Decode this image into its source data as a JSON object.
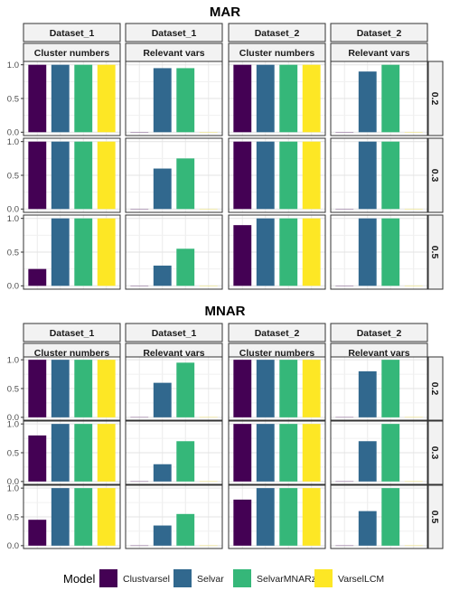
{
  "legend": {
    "title": "Model",
    "entries": [
      {
        "name": "Clustvarsel",
        "color": "#440154"
      },
      {
        "name": "Selvar",
        "color": "#31688E"
      },
      {
        "name": "SelvarMNARz",
        "color": "#35B779"
      },
      {
        "name": "VarselLCM",
        "color": "#FDE725"
      }
    ],
    "placement": "bottom"
  },
  "chart_data": [
    {
      "type": "bar",
      "title": "MAR",
      "columns": [
        {
          "dataset": "Dataset_1",
          "metric": "Cluster numbers"
        },
        {
          "dataset": "Dataset_1",
          "metric": "Relevant vars"
        },
        {
          "dataset": "Dataset_2",
          "metric": "Cluster numbers"
        },
        {
          "dataset": "Dataset_2",
          "metric": "Relevant vars"
        }
      ],
      "rows": [
        "0.2",
        "0.3",
        "0.5"
      ],
      "categories": [
        "Clustvarsel",
        "Selvar",
        "SelvarMNARz",
        "VarselLCM"
      ],
      "ylim": [
        0,
        1
      ],
      "yticks": [
        "0.0",
        "0.5",
        "1.0"
      ],
      "grid": true,
      "values": [
        [
          [
            1.0,
            1.0,
            1.0,
            1.0
          ],
          [
            0.0,
            0.95,
            0.95,
            0.0
          ],
          [
            1.0,
            1.0,
            1.0,
            1.0
          ],
          [
            0.0,
            0.9,
            1.0,
            0.0
          ]
        ],
        [
          [
            1.0,
            1.0,
            1.0,
            1.0
          ],
          [
            0.0,
            0.6,
            0.75,
            0.0
          ],
          [
            1.0,
            1.0,
            1.0,
            1.0
          ],
          [
            0.0,
            1.0,
            1.0,
            0.0
          ]
        ],
        [
          [
            0.25,
            1.0,
            1.0,
            1.0
          ],
          [
            0.0,
            0.3,
            0.55,
            0.0
          ],
          [
            0.9,
            1.0,
            1.0,
            1.0
          ],
          [
            0.0,
            1.0,
            1.0,
            0.0
          ]
        ]
      ]
    },
    {
      "type": "bar",
      "title": "MNAR",
      "columns": [
        {
          "dataset": "Dataset_1",
          "metric": "Cluster numbers"
        },
        {
          "dataset": "Dataset_1",
          "metric": "Relevant vars"
        },
        {
          "dataset": "Dataset_2",
          "metric": "Cluster numbers"
        },
        {
          "dataset": "Dataset_2",
          "metric": "Relevant vars"
        }
      ],
      "rows": [
        "0.2",
        "0.3",
        "0.5"
      ],
      "categories": [
        "Clustvarsel",
        "Selvar",
        "SelvarMNARz",
        "VarselLCM"
      ],
      "ylim": [
        0,
        1
      ],
      "yticks": [
        "0.0",
        "0.5",
        "1.0"
      ],
      "grid": true,
      "values": [
        [
          [
            1.0,
            1.0,
            1.0,
            1.0
          ],
          [
            0.0,
            0.6,
            0.95,
            0.0
          ],
          [
            1.0,
            1.0,
            1.0,
            1.0
          ],
          [
            0.0,
            0.8,
            1.0,
            0.0
          ]
        ],
        [
          [
            0.8,
            1.0,
            1.0,
            1.0
          ],
          [
            0.0,
            0.3,
            0.7,
            0.0
          ],
          [
            1.0,
            1.0,
            1.0,
            1.0
          ],
          [
            0.0,
            0.7,
            1.0,
            0.0
          ]
        ],
        [
          [
            0.45,
            1.0,
            1.0,
            1.0
          ],
          [
            0.0,
            0.35,
            0.55,
            0.0
          ],
          [
            0.8,
            1.0,
            1.0,
            1.0
          ],
          [
            0.0,
            0.6,
            1.0,
            0.0
          ]
        ]
      ]
    }
  ]
}
